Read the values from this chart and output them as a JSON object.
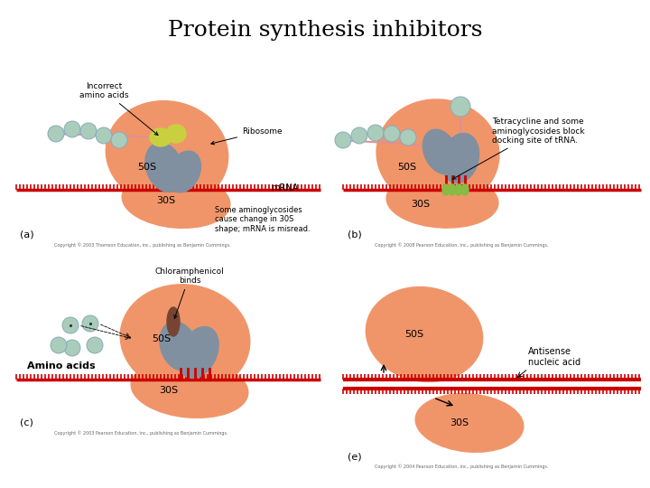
{
  "title": "Protein synthesis inhibitors",
  "title_fontsize": 18,
  "title_font": "serif",
  "background_color": "#ffffff",
  "salmon_color": "#F0956A",
  "gray_color": "#8090A0",
  "red_color": "#CC0000",
  "light_gray": "#AABBBB",
  "panel_labels": [
    "(a)",
    "(b)",
    "(c)",
    "(e)"
  ],
  "label_50S": "50S",
  "label_30S": "30S"
}
